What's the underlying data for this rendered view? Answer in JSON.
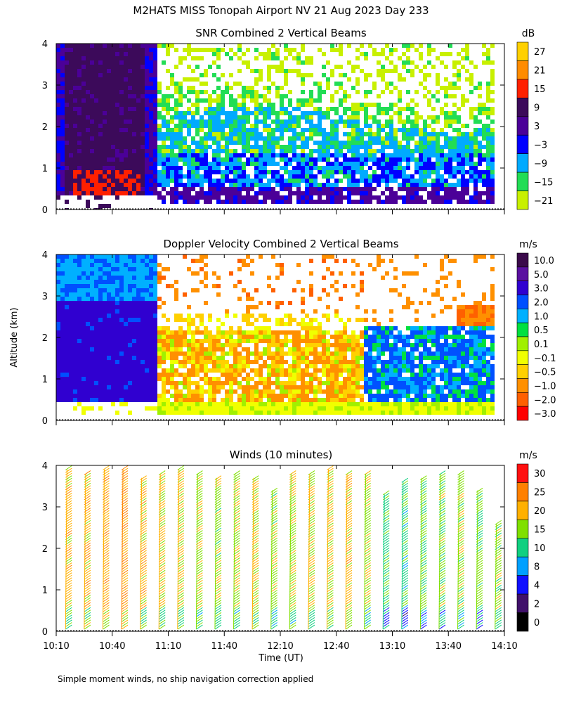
{
  "figure": {
    "title": "M2HATS MISS Tonopah Airport NV  21 Aug 2023 Day 233",
    "footnote": "Simple moment winds, no ship navigation correction applied",
    "shared_ylabel": "Altitude (km)",
    "shared_xlabel": "Time (UT)",
    "time_ticks": [
      "10:10",
      "10:40",
      "11:10",
      "11:40",
      "12:10",
      "12:40",
      "13:10",
      "13:40",
      "14:10"
    ]
  },
  "chart_data": [
    {
      "type": "heatmap",
      "title": "SNR Combined 2 Vertical Beams",
      "ylabel": "Altitude (km)",
      "ylim": [
        0,
        4
      ],
      "yticks": [
        "0",
        "1",
        "2",
        "3",
        "4"
      ],
      "xlim": [
        "10:10",
        "14:10"
      ],
      "colorbar": {
        "unit": "dB",
        "labels": [
          "27",
          "21",
          "15",
          "9",
          "3",
          "−3",
          "−9",
          "−15",
          "−21"
        ],
        "colors": [
          "#ffd000",
          "#ff8c00",
          "#ff2000",
          "#3c0a5a",
          "#4b0098",
          "#0000ff",
          "#00aaff",
          "#22dd55",
          "#c8f000"
        ]
      },
      "regions": [
        {
          "t": [
            "10:10",
            "11:05"
          ],
          "alt_km": [
            0.2,
            4.0
          ],
          "level": "3 to 15 dB"
        },
        {
          "t": [
            "11:05",
            "14:00"
          ],
          "alt_km": [
            0.2,
            0.6
          ],
          "level": "3 to 9 dB"
        },
        {
          "t": [
            "11:05",
            "14:00"
          ],
          "alt_km": [
            0.6,
            2.3
          ],
          "level": "-15 to -3 dB"
        },
        {
          "t": [
            "11:05",
            "14:00"
          ],
          "alt_km": [
            2.3,
            4.0
          ],
          "level": "-21 to -15 dB"
        }
      ]
    },
    {
      "type": "heatmap",
      "title": "Doppler Velocity Combined 2 Vertical Beams",
      "ylabel": "Altitude (km)",
      "ylim": [
        0,
        4
      ],
      "yticks": [
        "0",
        "1",
        "2",
        "3",
        "4"
      ],
      "xlim": [
        "10:10",
        "14:10"
      ],
      "colorbar": {
        "unit": "m/s",
        "labels": [
          "10.0",
          "5.0",
          "3.0",
          "2.0",
          "1.0",
          "0.5",
          "0.1",
          "−0.1",
          "−0.5",
          "−1.0",
          "−2.0",
          "−3.0"
        ],
        "colors": [
          "#3a0a4a",
          "#5a10a0",
          "#3000d0",
          "#0050ff",
          "#00b0ff",
          "#00e040",
          "#a0f000",
          "#f0ff00",
          "#ffd000",
          "#ff9000",
          "#ff6000",
          "#ff0000"
        ]
      },
      "regions": [
        {
          "t": [
            "10:10",
            "11:05"
          ],
          "alt_km": [
            0.4,
            2.9
          ],
          "level": "3.0 m/s"
        },
        {
          "t": [
            "10:10",
            "11:05"
          ],
          "alt_km": [
            2.9,
            4.0
          ],
          "level": "1.0 m/s"
        },
        {
          "t": [
            "11:05",
            "12:55"
          ],
          "alt_km": [
            0.6,
            2.3
          ],
          "level": "-1.0 m/s"
        },
        {
          "t": [
            "11:05",
            "14:00"
          ],
          "alt_km": [
            0.1,
            0.5
          ],
          "level": "-0.1 m/s"
        },
        {
          "t": [
            "12:55",
            "14:00"
          ],
          "alt_km": [
            0.5,
            2.2
          ],
          "level": "2.0 m/s"
        }
      ]
    },
    {
      "type": "scatter",
      "title": "Winds (10 minutes)",
      "ylabel": "Altitude (km)",
      "xlabel": "Time (UT)",
      "ylim": [
        0,
        4
      ],
      "yticks": [
        "0",
        "1",
        "2",
        "3",
        "4"
      ],
      "xticks": [
        "10:10",
        "10:40",
        "11:10",
        "11:40",
        "12:10",
        "12:40",
        "13:10",
        "13:40",
        "14:10"
      ],
      "colorbar": {
        "unit": "m/s",
        "labels": [
          "30",
          "25",
          "20",
          "15",
          "10",
          "8",
          "4",
          "2",
          "0"
        ],
        "colors": [
          "#ff1010",
          "#ff8000",
          "#ffb000",
          "#80e000",
          "#10d080",
          "#00a0ff",
          "#1010ff",
          "#40106a",
          "#000000"
        ]
      },
      "profiles": {
        "times": [
          "10:15",
          "10:25",
          "10:35",
          "10:45",
          "10:55",
          "11:05",
          "11:15",
          "11:25",
          "11:35",
          "11:45",
          "11:55",
          "12:05",
          "12:15",
          "12:25",
          "12:35",
          "12:45",
          "12:55",
          "13:05",
          "13:15",
          "13:25",
          "13:35",
          "13:45",
          "13:55",
          "14:05"
        ],
        "top_alt_km": [
          3.9,
          3.8,
          3.9,
          3.9,
          3.7,
          3.8,
          3.9,
          3.8,
          3.7,
          3.8,
          3.7,
          3.4,
          3.8,
          3.8,
          3.9,
          3.8,
          3.8,
          3.3,
          3.6,
          3.7,
          3.8,
          3.8,
          3.4,
          2.6
        ],
        "speed_ms": [
          22,
          23,
          24,
          25,
          22,
          21,
          20,
          19,
          18,
          19,
          20,
          18,
          19,
          20,
          21,
          22,
          19,
          14,
          13,
          15,
          17,
          18,
          16,
          18
        ]
      }
    }
  ]
}
